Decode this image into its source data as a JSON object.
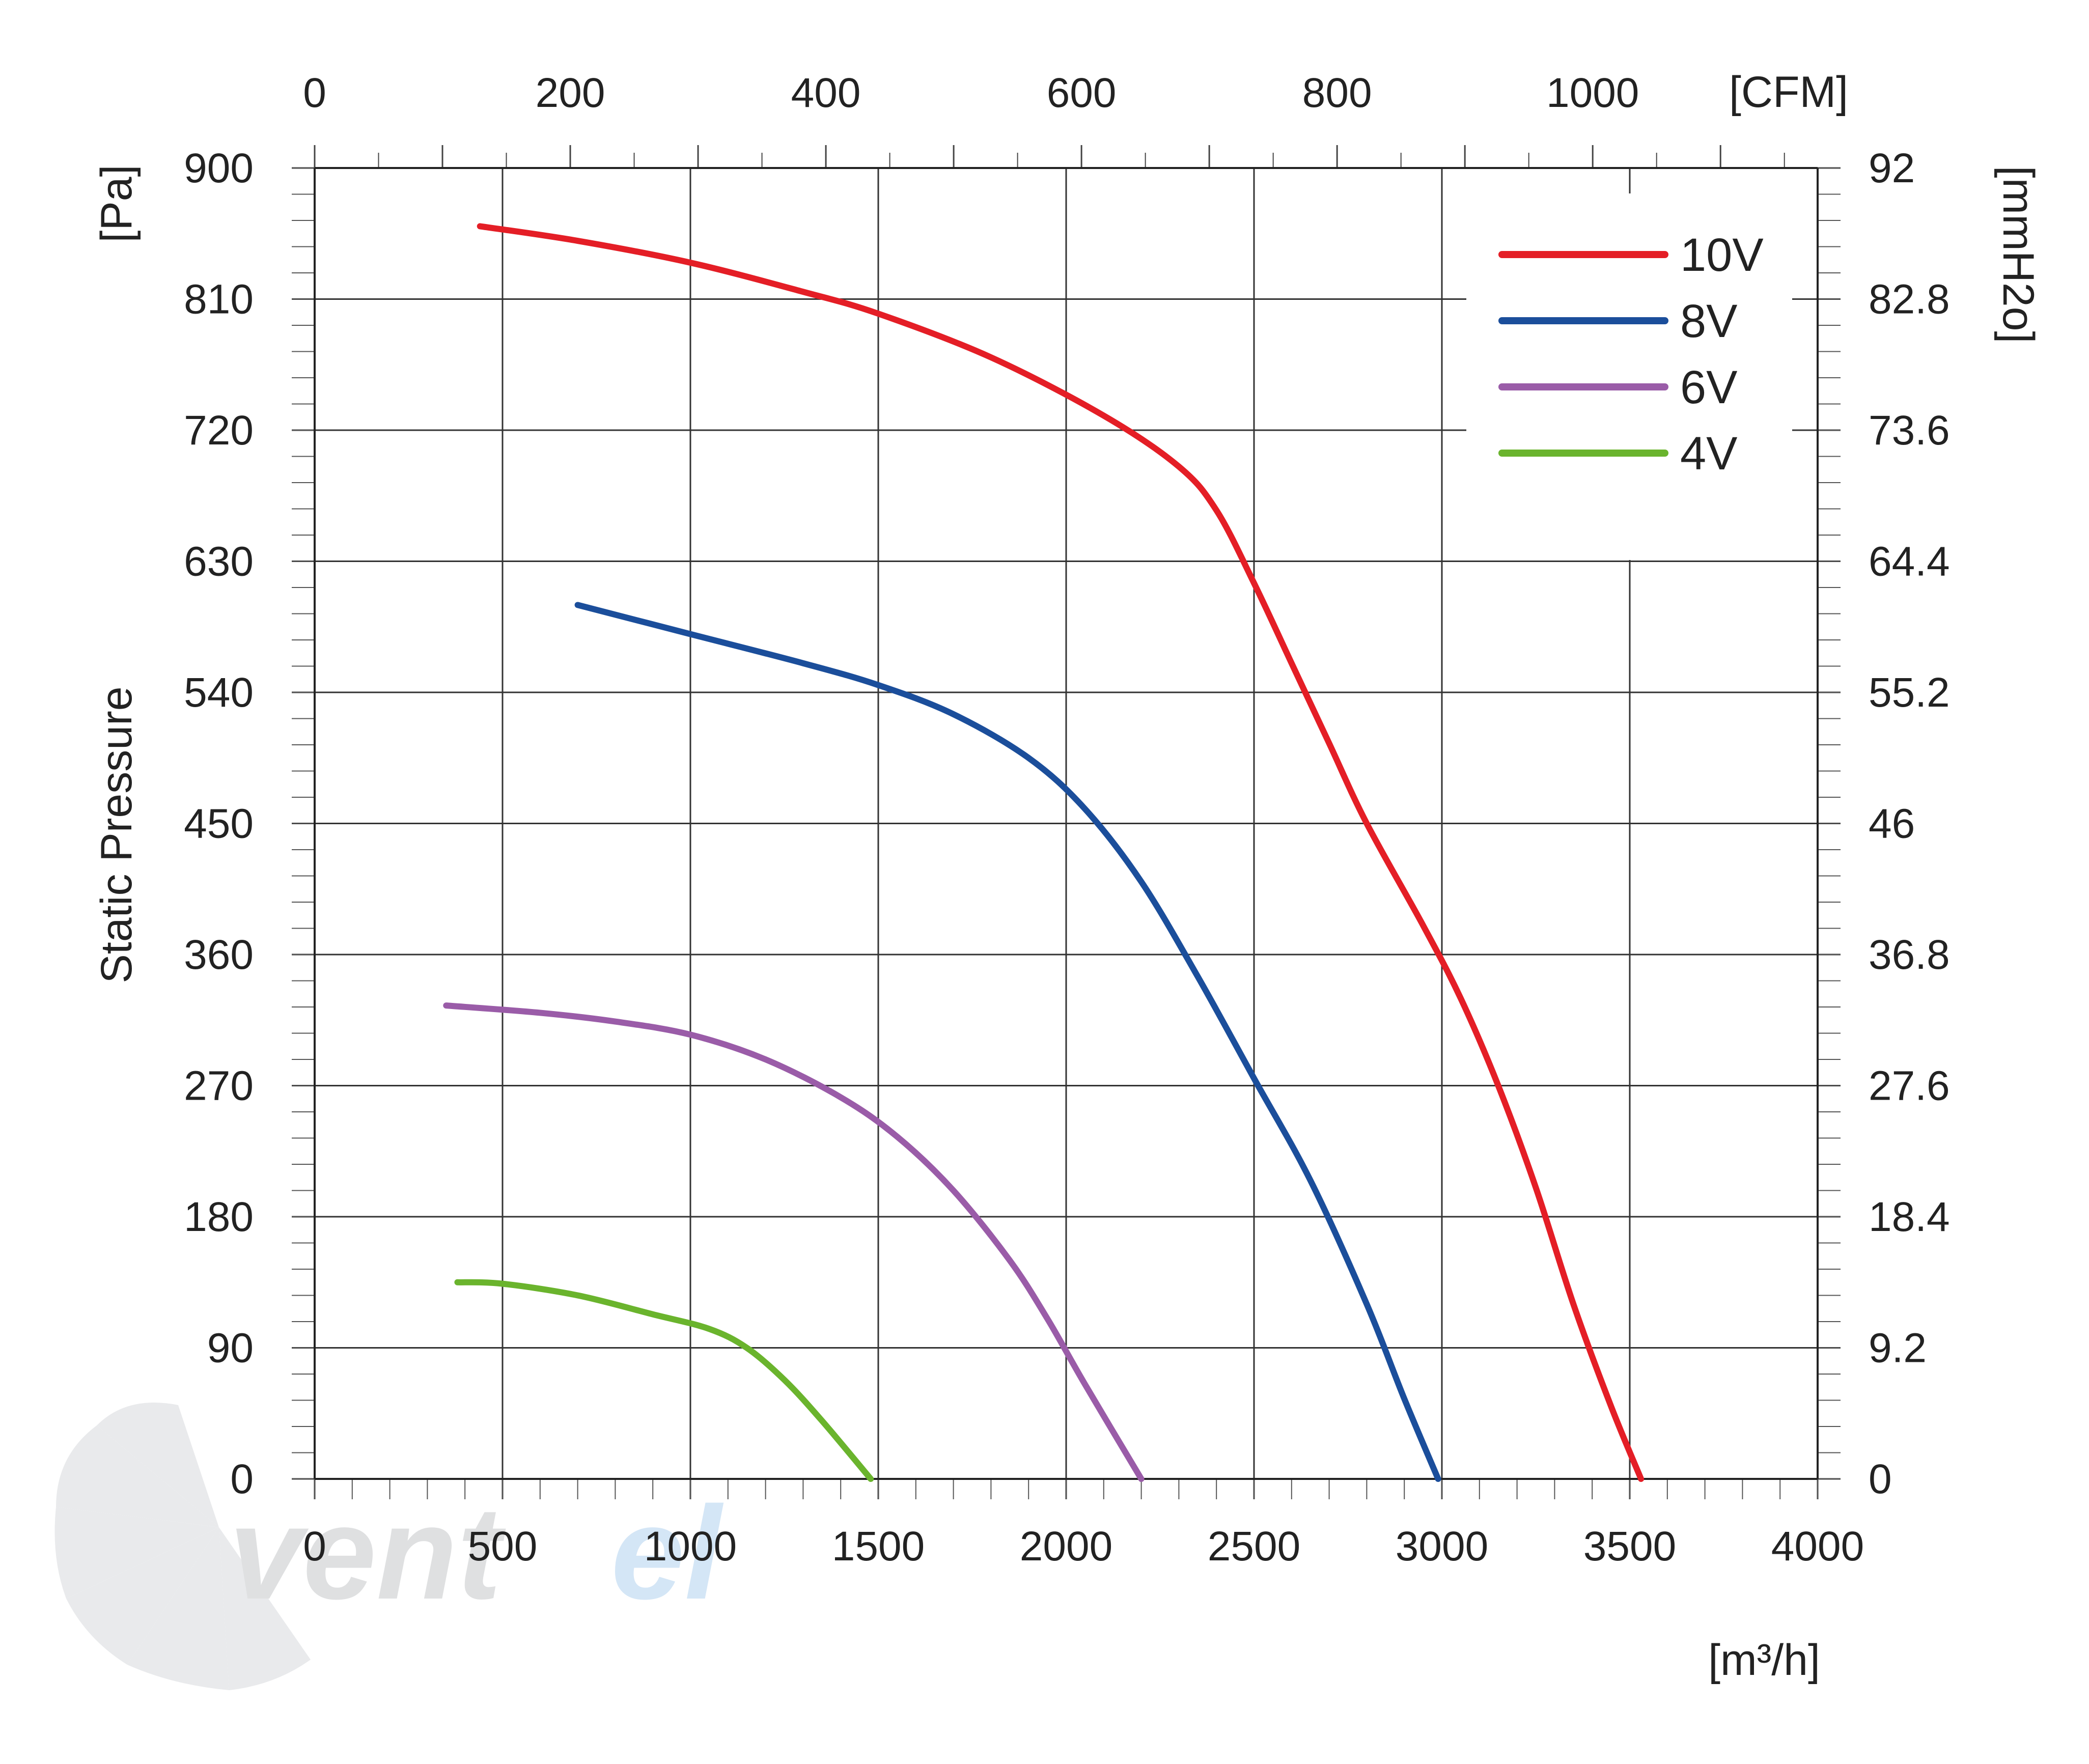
{
  "chart_data": {
    "type": "line",
    "ylabel": "Static Pressure",
    "y_unit": "[Pa]",
    "y2_unit": "[mmH2o]",
    "x_unit": "[m³/h]",
    "x2_unit": "[CFM]",
    "xlim": [
      0,
      4000
    ],
    "ylim": [
      0,
      900
    ],
    "x_ticks": [
      "0",
      "500",
      "1000",
      "1500",
      "2000",
      "2500",
      "3000",
      "3500",
      "4000"
    ],
    "x_tick_values": [
      0,
      500,
      1000,
      1500,
      2000,
      2500,
      3000,
      3500,
      4000
    ],
    "y_ticks": [
      "0",
      "90",
      "180",
      "270",
      "360",
      "450",
      "540",
      "630",
      "720",
      "810",
      "900"
    ],
    "y_tick_values": [
      0,
      90,
      180,
      270,
      360,
      450,
      540,
      630,
      720,
      810,
      900
    ],
    "y2_ticks": [
      "0",
      "9.2",
      "18.4",
      "27.6",
      "36.8",
      "46",
      "55.2",
      "64.4",
      "73.6",
      "82.8",
      "92"
    ],
    "x2_ticks": [
      "0",
      "200",
      "400",
      "600",
      "800",
      "1000"
    ],
    "x2_tick_values": [
      0,
      200,
      400,
      600,
      800,
      1000
    ],
    "x2_max": 1176,
    "grid": true,
    "legend_position": "top-right",
    "series": [
      {
        "name": "10V",
        "color": "#e41e26",
        "points": [
          [
            440,
            860
          ],
          [
            700,
            850
          ],
          [
            1000,
            835
          ],
          [
            1300,
            815
          ],
          [
            1500,
            800
          ],
          [
            1800,
            770
          ],
          [
            2100,
            730
          ],
          [
            2300,
            695
          ],
          [
            2400,
            665
          ],
          [
            2500,
            615
          ],
          [
            2600,
            560
          ],
          [
            2700,
            505
          ],
          [
            2800,
            450
          ],
          [
            2950,
            380
          ],
          [
            3050,
            330
          ],
          [
            3150,
            270
          ],
          [
            3250,
            200
          ],
          [
            3350,
            120
          ],
          [
            3450,
            50
          ],
          [
            3530,
            0
          ]
        ]
      },
      {
        "name": "8V",
        "color": "#1b4e9b",
        "points": [
          [
            700,
            600
          ],
          [
            1000,
            580
          ],
          [
            1300,
            560
          ],
          [
            1500,
            545
          ],
          [
            1700,
            525
          ],
          [
            1900,
            495
          ],
          [
            2050,
            460
          ],
          [
            2200,
            410
          ],
          [
            2350,
            345
          ],
          [
            2500,
            275
          ],
          [
            2650,
            205
          ],
          [
            2800,
            120
          ],
          [
            2900,
            55
          ],
          [
            2990,
            0
          ]
        ]
      },
      {
        "name": "6V",
        "color": "#9a5ca8",
        "points": [
          [
            350,
            325
          ],
          [
            600,
            320
          ],
          [
            800,
            314
          ],
          [
            1000,
            305
          ],
          [
            1200,
            288
          ],
          [
            1400,
            262
          ],
          [
            1550,
            235
          ],
          [
            1700,
            198
          ],
          [
            1850,
            150
          ],
          [
            1950,
            110
          ],
          [
            2050,
            65
          ],
          [
            2200,
            0
          ]
        ]
      },
      {
        "name": "4V",
        "color": "#6ab42d",
        "points": [
          [
            380,
            135
          ],
          [
            500,
            134
          ],
          [
            700,
            126
          ],
          [
            900,
            113
          ],
          [
            1050,
            103
          ],
          [
            1150,
            90
          ],
          [
            1250,
            68
          ],
          [
            1350,
            40
          ],
          [
            1480,
            0
          ]
        ]
      }
    ]
  },
  "logo": {
    "text_main": "vent",
    "text_accent": "el"
  }
}
